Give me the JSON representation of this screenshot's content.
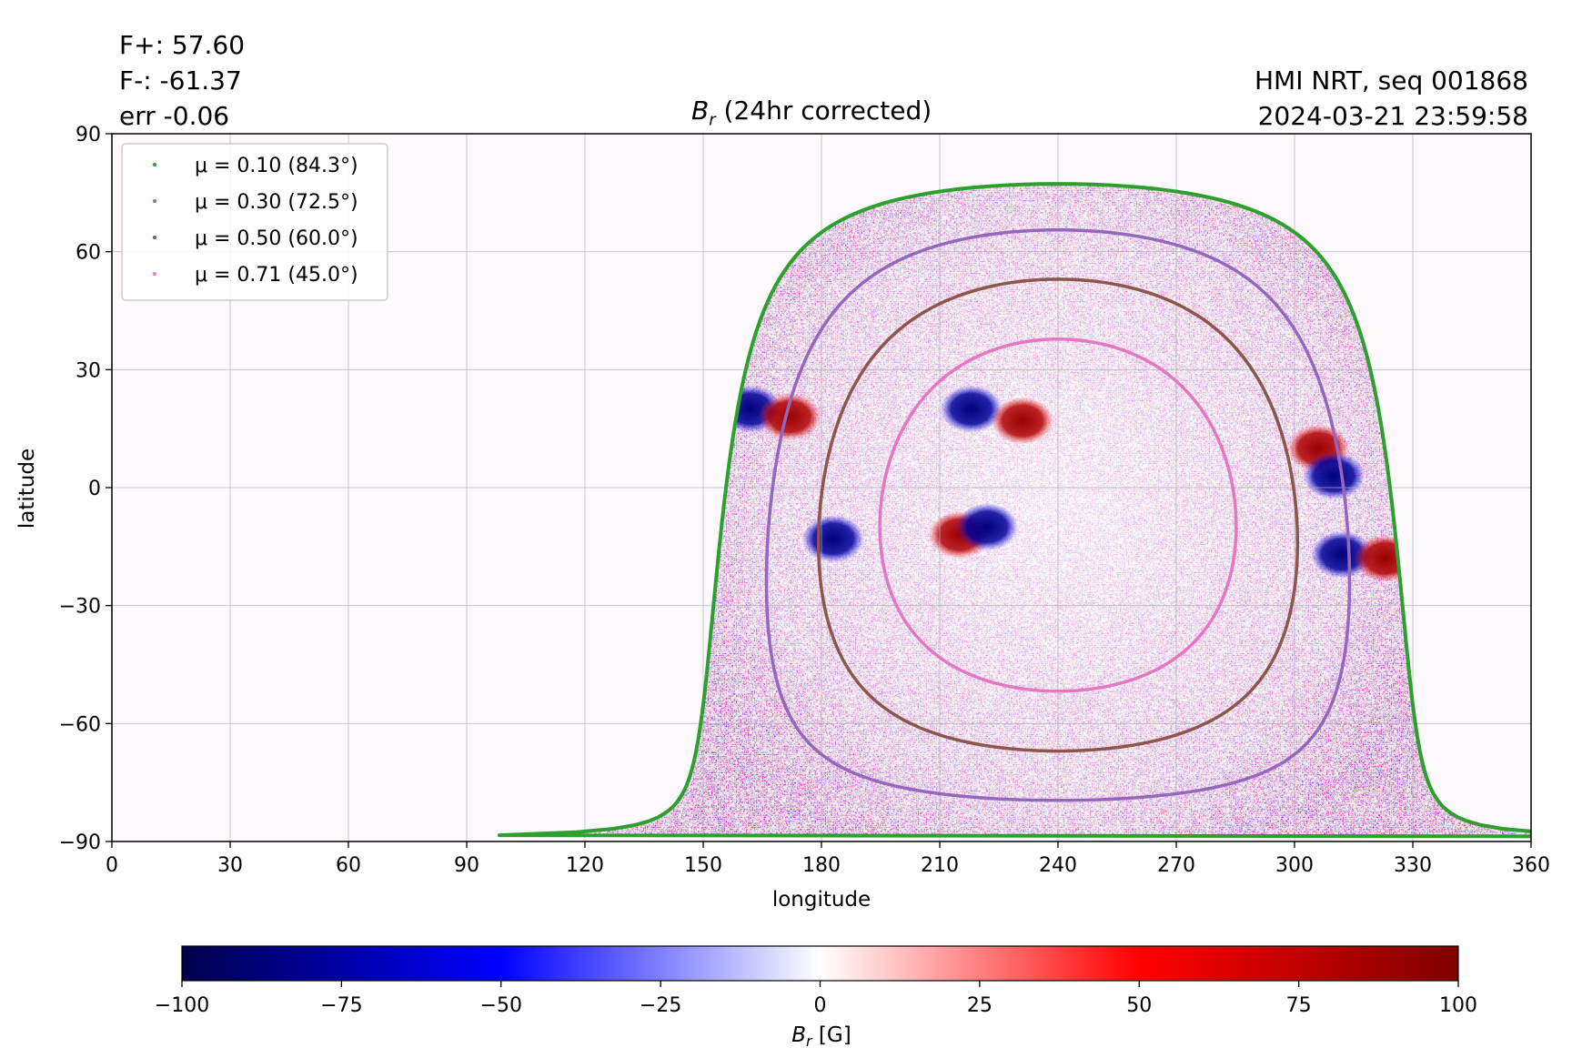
{
  "header": {
    "f_plus": "F+: 57.60",
    "f_minus": "F-: -61.37",
    "err": "err -0.06",
    "instrument": "HMI NRT, seq 001868",
    "timestamp": "2024-03-21 23:59:58"
  },
  "chart_data": {
    "type": "heatmap",
    "title_symbol": "B",
    "title_subscript": "r",
    "title_rest": " (24hr corrected)",
    "xlabel": "longitude",
    "ylabel": "latitude",
    "xlim": [
      0,
      360
    ],
    "ylim": [
      -90,
      90
    ],
    "xticks": [
      "0",
      "30",
      "60",
      "90",
      "120",
      "150",
      "180",
      "210",
      "240",
      "270",
      "300",
      "330",
      "360"
    ],
    "yticks": [
      "−90",
      "−60",
      "−30",
      "0",
      "30",
      "60",
      "90"
    ],
    "grid": true,
    "legend_position": "upper-left",
    "legend": [
      {
        "label": "μ = 0.10 (84.3°)",
        "color": "#2ca02c"
      },
      {
        "label": "μ = 0.30 (72.5°)",
        "color": "#9467bd"
      },
      {
        "label": "μ = 0.50 (60.0°)",
        "color": "#8c564b"
      },
      {
        "label": "μ = 0.71 (45.0°)",
        "color": "#e377c2"
      }
    ],
    "disk_center_longitude": 240,
    "disk_center_latitude": -7,
    "mu_contours": [
      {
        "mu": 0.1,
        "angle_deg": 84.3,
        "color": "#2ca02c"
      },
      {
        "mu": 0.3,
        "angle_deg": 72.5,
        "color": "#9467bd"
      },
      {
        "mu": 0.5,
        "angle_deg": 60.0,
        "color": "#8c564b"
      },
      {
        "mu": 0.71,
        "angle_deg": 45.0,
        "color": "#e377c2"
      }
    ],
    "active_regions": [
      {
        "lon": 218,
        "lat": 20,
        "polarity": "negative"
      },
      {
        "lon": 231,
        "lat": 17,
        "polarity": "positive"
      },
      {
        "lon": 215,
        "lat": -12,
        "polarity": "positive"
      },
      {
        "lon": 222,
        "lat": -10,
        "polarity": "negative"
      },
      {
        "lon": 162,
        "lat": 20,
        "polarity": "negative"
      },
      {
        "lon": 172,
        "lat": 18,
        "polarity": "positive"
      },
      {
        "lon": 183,
        "lat": -13,
        "polarity": "negative"
      },
      {
        "lon": 312,
        "lat": -17,
        "polarity": "negative"
      },
      {
        "lon": 323,
        "lat": -18,
        "polarity": "positive"
      },
      {
        "lon": 306,
        "lat": 10,
        "polarity": "positive"
      },
      {
        "lon": 310,
        "lat": 3,
        "polarity": "negative"
      }
    ],
    "colorbar": {
      "min": -100,
      "max": 100,
      "ticks": [
        "−100",
        "−75",
        "−50",
        "−25",
        "0",
        "25",
        "50",
        "75",
        "100"
      ],
      "label_symbol": "B",
      "label_subscript": "r",
      "label_unit": " [G]",
      "colormap": "seismic",
      "colors": [
        "#00004c",
        "#0000ff",
        "#ffffff",
        "#ff0000",
        "#800000"
      ]
    }
  }
}
